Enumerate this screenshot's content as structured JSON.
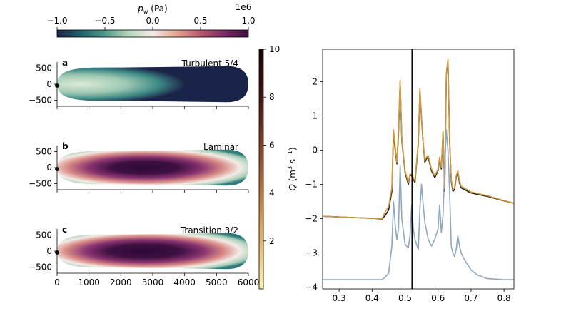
{
  "chart_data": [
    {
      "type": "heatmap",
      "panel": "colorbar-top",
      "xlabel": "p_w (Pa)",
      "xlabel_main": "p",
      "xlabel_sub": "w",
      "xlabel_unit": " (Pa)",
      "scale_label": "1e6",
      "ticks": [
        -1.0,
        -0.5,
        0.0,
        0.5,
        1.0
      ],
      "tick_labels": [
        "−1.0",
        "−0.5",
        "0.0",
        "0.5",
        "1.0"
      ],
      "range": [
        -1.0,
        1.0
      ],
      "colormap": [
        "#1a2448",
        "#24626a",
        "#4f9a8b",
        "#b8d6bd",
        "#f3ece8",
        "#e2a694",
        "#b75a6e",
        "#7a2a66",
        "#3a0d3c"
      ]
    },
    {
      "type": "heatmap",
      "panel": "a",
      "label": "a",
      "title": "Turbulent 5/4",
      "xlim": [
        0,
        6000
      ],
      "ylim": [
        -600,
        600
      ],
      "yticks": [
        500,
        0,
        -500
      ],
      "ytick_labels": [
        "500",
        "0",
        "−500"
      ],
      "field": "pressure",
      "pressure_range_1e6": [
        -1.0,
        -0.3
      ]
    },
    {
      "type": "heatmap",
      "panel": "b",
      "label": "b",
      "title": "Laminar",
      "xlim": [
        0,
        6000
      ],
      "ylim": [
        -600,
        600
      ],
      "yticks": [
        500,
        0,
        -500
      ],
      "ytick_labels": [
        "500",
        "0",
        "−500"
      ],
      "field": "pressure",
      "pressure_range_1e6": [
        -0.6,
        1.0
      ]
    },
    {
      "type": "heatmap",
      "panel": "c",
      "label": "c",
      "title": "Transition 3/2",
      "xlim": [
        0,
        6000
      ],
      "ylim": [
        -600,
        600
      ],
      "xticks": [
        0,
        1000,
        2000,
        3000,
        4000,
        5000,
        6000
      ],
      "xtick_labels": [
        "0",
        "1000",
        "2000",
        "3000",
        "4000",
        "5000",
        "6000"
      ],
      "yticks": [
        500,
        0,
        -500
      ],
      "ytick_labels": [
        "500",
        "0",
        "−500"
      ],
      "field": "pressure",
      "pressure_range_1e6": [
        -0.6,
        1.0
      ]
    },
    {
      "type": "heatmap",
      "panel": "colorbar-right",
      "range": [
        0,
        10
      ],
      "ticks": [
        2,
        4,
        6,
        8,
        10
      ],
      "tick_labels": [
        "2",
        "4",
        "6",
        "8",
        "10"
      ],
      "colormap": [
        "#fdf3b0",
        "#e8c070",
        "#cf8a45",
        "#a35a30",
        "#6e3220",
        "#3a1410",
        "#1a0505"
      ]
    },
    {
      "type": "line",
      "panel": "right",
      "ylabel_main": "Q",
      "ylabel_unit": " (m",
      "ylabel_sup1": "3",
      "ylabel_mid": " s",
      "ylabel_sup2": "−1",
      "ylabel_end": ")",
      "xlim": [
        0.25,
        0.83
      ],
      "ylim": [
        -4.05,
        2.95
      ],
      "xticks": [
        0.3,
        0.4,
        0.5,
        0.6,
        0.7,
        0.8
      ],
      "xtick_labels": [
        "0.3",
        "0.4",
        "0.5",
        "0.6",
        "0.7",
        "0.8"
      ],
      "yticks": [
        -4,
        -3,
        -2,
        -1,
        0,
        1,
        2
      ],
      "ytick_labels": [
        "−4",
        "−3",
        "−2",
        "−1",
        "0",
        "1",
        "2"
      ],
      "vline_x": 0.521,
      "series": [
        {
          "color": "#1a1a1a",
          "x": [
            0.25,
            0.3,
            0.35,
            0.4,
            0.43,
            0.44,
            0.45,
            0.46,
            0.465,
            0.47,
            0.475,
            0.48,
            0.485,
            0.49,
            0.5,
            0.51,
            0.515,
            0.52,
            0.53,
            0.54,
            0.545,
            0.55,
            0.555,
            0.56,
            0.565,
            0.57,
            0.58,
            0.59,
            0.6,
            0.605,
            0.61,
            0.615,
            0.62,
            0.625,
            0.63,
            0.635,
            0.64,
            0.645,
            0.65,
            0.655,
            0.66,
            0.665,
            0.67,
            0.7,
            0.75,
            0.8,
            0.83
          ],
          "y": [
            -1.93,
            -1.95,
            -1.97,
            -1.99,
            -2.01,
            -1.9,
            -1.75,
            -1.2,
            0.55,
            0.0,
            -0.4,
            0.5,
            2.0,
            0.3,
            -0.65,
            -1.0,
            -0.72,
            -0.75,
            -0.95,
            0.2,
            1.75,
            0.9,
            0.2,
            -0.35,
            -0.25,
            -0.2,
            -0.6,
            -0.8,
            -0.6,
            -0.25,
            -0.55,
            0.5,
            -1.2,
            2.2,
            2.6,
            0.3,
            -0.9,
            -1.2,
            -1.15,
            -0.8,
            -0.65,
            -0.95,
            -1.1,
            -1.25,
            -1.35,
            -1.48,
            -1.55
          ]
        },
        {
          "color": "#d4983a",
          "x": [
            0.25,
            0.3,
            0.35,
            0.4,
            0.43,
            0.44,
            0.45,
            0.46,
            0.465,
            0.47,
            0.475,
            0.48,
            0.485,
            0.49,
            0.5,
            0.51,
            0.515,
            0.52,
            0.53,
            0.54,
            0.545,
            0.55,
            0.555,
            0.56,
            0.565,
            0.57,
            0.58,
            0.59,
            0.6,
            0.605,
            0.61,
            0.615,
            0.62,
            0.625,
            0.63,
            0.635,
            0.64,
            0.645,
            0.65,
            0.655,
            0.66,
            0.665,
            0.67,
            0.7,
            0.75,
            0.8,
            0.83
          ],
          "y": [
            -1.93,
            -1.95,
            -1.97,
            -1.99,
            -2.0,
            -1.8,
            -1.65,
            -1.1,
            0.6,
            0.1,
            -0.35,
            0.6,
            2.05,
            0.35,
            -0.6,
            -0.95,
            -0.7,
            -0.7,
            -0.9,
            0.25,
            1.8,
            0.95,
            0.25,
            -0.3,
            -0.2,
            -0.15,
            -0.55,
            -0.75,
            -0.55,
            -0.2,
            -0.5,
            0.55,
            -1.1,
            2.25,
            2.65,
            0.35,
            -0.85,
            -1.15,
            -1.1,
            -0.75,
            -0.6,
            -0.9,
            -1.05,
            -1.22,
            -1.33,
            -1.47,
            -1.55
          ]
        },
        {
          "color": "#8fa8c0",
          "x": [
            0.25,
            0.3,
            0.35,
            0.4,
            0.43,
            0.44,
            0.45,
            0.46,
            0.465,
            0.47,
            0.475,
            0.48,
            0.485,
            0.49,
            0.5,
            0.51,
            0.515,
            0.52,
            0.525,
            0.53,
            0.54,
            0.545,
            0.55,
            0.555,
            0.56,
            0.57,
            0.58,
            0.59,
            0.6,
            0.605,
            0.61,
            0.615,
            0.62,
            0.625,
            0.63,
            0.635,
            0.64,
            0.645,
            0.65,
            0.655,
            0.66,
            0.665,
            0.67,
            0.68,
            0.7,
            0.72,
            0.75,
            0.8,
            0.83
          ],
          "y": [
            -3.78,
            -3.78,
            -3.78,
            -3.78,
            -3.78,
            -3.7,
            -3.6,
            -2.8,
            -1.5,
            -2.2,
            -2.6,
            -2.3,
            -0.45,
            -2.0,
            -2.75,
            -2.85,
            -2.5,
            -1.6,
            -2.3,
            -2.6,
            -2.9,
            -1.7,
            -1.0,
            -1.6,
            -2.1,
            -2.6,
            -2.8,
            -2.6,
            -2.3,
            -1.6,
            -2.4,
            -1.9,
            -0.5,
            0.6,
            0.0,
            -1.2,
            -2.8,
            -3.0,
            -3.1,
            -2.9,
            -2.5,
            -2.8,
            -3.0,
            -3.2,
            -3.5,
            -3.65,
            -3.75,
            -3.78,
            -3.78
          ]
        }
      ]
    }
  ]
}
